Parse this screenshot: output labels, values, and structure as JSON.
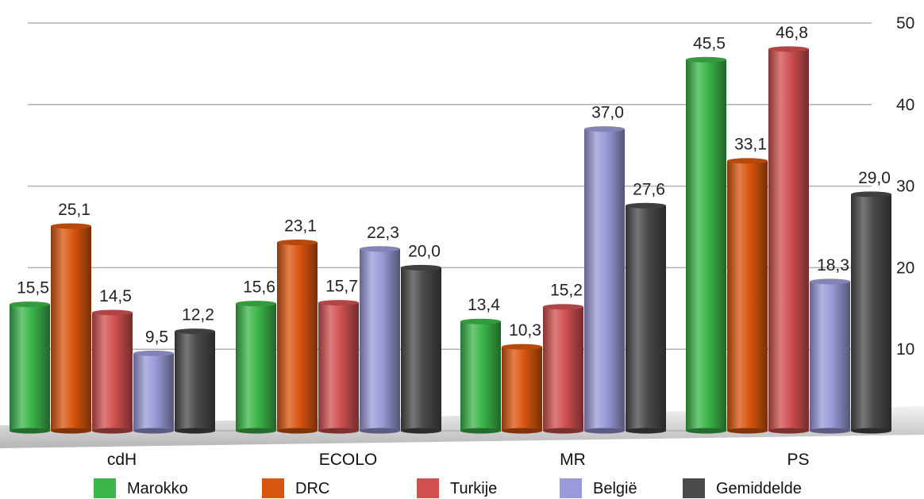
{
  "chart_data": {
    "type": "bar",
    "categories": [
      "cdH",
      "ECOLO",
      "MR",
      "PS"
    ],
    "series": [
      {
        "name": "Marokko",
        "values": [
          15.5,
          15.6,
          13.4,
          45.5
        ],
        "labels": [
          "15,5",
          "15,6",
          "13,4",
          "45,5"
        ]
      },
      {
        "name": "DRC",
        "values": [
          25.1,
          23.1,
          10.3,
          33.1
        ],
        "labels": [
          "25,1",
          "23,1",
          "10,3",
          "33,1"
        ]
      },
      {
        "name": "Turkije",
        "values": [
          14.5,
          15.7,
          15.2,
          46.8
        ],
        "labels": [
          "14,5",
          "15,7",
          "15,2",
          "46,8"
        ]
      },
      {
        "name": "België",
        "values": [
          9.5,
          22.3,
          37.0,
          18.3
        ],
        "labels": [
          "9,5",
          "22,3",
          "37,0",
          "18,3"
        ]
      },
      {
        "name": "Gemiddelde",
        "values": [
          12.2,
          20.0,
          27.6,
          29.0
        ],
        "labels": [
          "12,2",
          "20,0",
          "27,6",
          "29,0"
        ]
      }
    ],
    "y_ticks": [
      "10",
      "20",
      "30",
      "40",
      "50"
    ],
    "ylim": [
      0,
      50
    ],
    "grid": true,
    "legend_position": "bottom",
    "axis_side": "right",
    "colors": {
      "Marokko": "#3cb54a",
      "DRC": "#d9560f",
      "Turkije": "#d05050",
      "België": "#9a9ad8",
      "Gemiddelde": "#4a4a4a"
    }
  }
}
